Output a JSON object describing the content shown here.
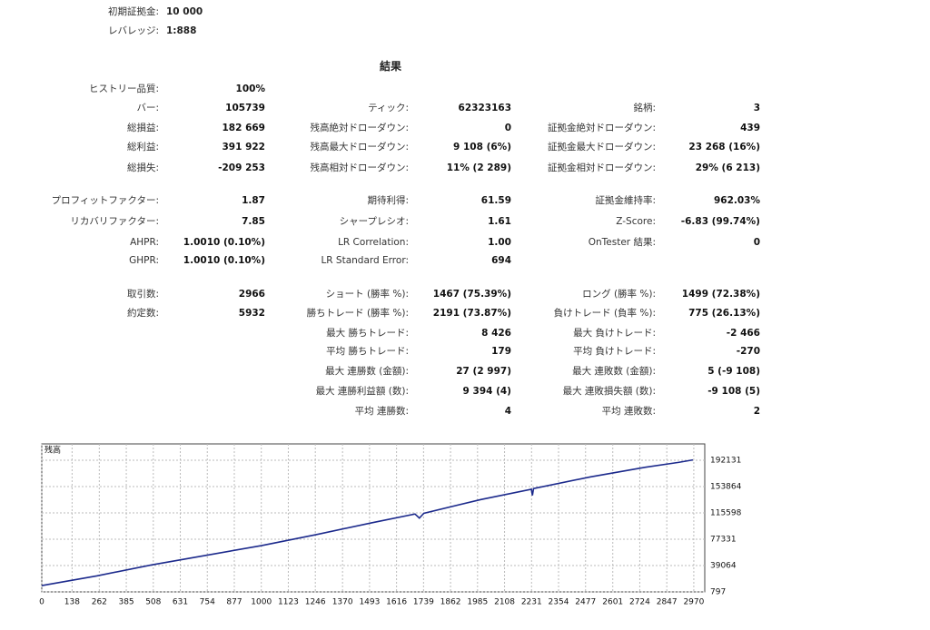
{
  "header": {
    "items": [
      {
        "label": "初期証拠金:",
        "value": "10 000"
      },
      {
        "label": "レバレッジ:",
        "value": "1:888"
      }
    ]
  },
  "title": "結果",
  "rows": [
    {
      "left": {
        "label": "ヒストリー品質:",
        "value": "100%"
      }
    },
    {
      "left": {
        "label": "バー:",
        "value": "105739"
      },
      "middle": {
        "label": "ティック:",
        "value": "62323163"
      },
      "right": {
        "label": "銘柄:",
        "value": "3"
      }
    },
    {
      "left": {
        "label": "総損益:",
        "value": "182 669"
      },
      "middle": {
        "label": "残高絶対ドローダウン:",
        "value": "0"
      },
      "right": {
        "label": "証拠金絶対ドローダウン:",
        "value": "439"
      }
    },
    {
      "left": {
        "label": "総利益:",
        "value": "391 922"
      },
      "middle": {
        "label": "残高最大ドローダウン:",
        "value": "9 108 (6%)"
      },
      "right": {
        "label": "証拠金最大ドローダウン:",
        "value": "23 268 (16%)"
      }
    },
    {
      "left": {
        "label": "総損失:",
        "value": "-209 253"
      },
      "middle": {
        "label": "残高相対ドローダウン:",
        "value": "11% (2 289)"
      },
      "right": {
        "label": "証拠金相対ドローダウン:",
        "value": "29% (6 213)"
      }
    },
    {
      "left": {
        "label": "プロフィットファクター:",
        "value": "1.87"
      },
      "middle": {
        "label": "期待利得:",
        "value": "61.59"
      },
      "right": {
        "label": "証拠金維持率:",
        "value": "962.03%"
      }
    },
    {
      "left": {
        "label": "リカバリファクター:",
        "value": "7.85"
      },
      "middle": {
        "label": "シャープレシオ:",
        "value": "1.61"
      },
      "right": {
        "label": "Z-Score:",
        "value": "-6.83 (99.74%)"
      }
    },
    {
      "left": {
        "label": "AHPR:",
        "value": "1.0010 (0.10%)"
      },
      "middle": {
        "label": "LR Correlation:",
        "value": "1.00"
      },
      "right": {
        "label": "OnTester 結果:",
        "value": "0"
      }
    },
    {
      "left": {
        "label": "GHPR:",
        "value": "1.0010 (0.10%)"
      },
      "middle": {
        "label": "LR Standard Error:",
        "value": "694"
      }
    },
    {
      "left": {
        "label": "取引数:",
        "value": "2966"
      },
      "middle": {
        "label": "ショート (勝率 %):",
        "value": "1467 (75.39%)"
      },
      "right": {
        "label": "ロング (勝率 %):",
        "value": "1499 (72.38%)"
      }
    },
    {
      "left": {
        "label": "約定数:",
        "value": "5932"
      },
      "middle": {
        "label": "勝ちトレード (勝率 %):",
        "value": "2191 (73.87%)"
      },
      "right": {
        "label": "負けトレード (負率 %):",
        "value": "775 (26.13%)"
      }
    },
    {
      "middle": {
        "label": "最大 勝ちトレード:",
        "value": "8 426"
      },
      "right": {
        "label": "最大 負けトレード:",
        "value": "-2 466"
      }
    },
    {
      "middle": {
        "label": "平均 勝ちトレード:",
        "value": "179"
      },
      "right": {
        "label": "平均 負けトレード:",
        "value": "-270"
      }
    },
    {
      "middle": {
        "label": "最大 連勝数 (金額):",
        "value": "27 (2 997)"
      },
      "right": {
        "label": "最大 連敗数 (金額):",
        "value": "5 (-9 108)"
      }
    },
    {
      "middle": {
        "label": "最大 連勝利益額 (数):",
        "value": "9 394 (4)"
      },
      "right": {
        "label": "最大 連敗損失額 (数):",
        "value": "-9 108 (5)"
      }
    },
    {
      "middle": {
        "label": "平均 連勝数:",
        "value": "4"
      },
      "right": {
        "label": "平均 連敗数:",
        "value": "2"
      }
    }
  ],
  "chart_data": {
    "type": "line",
    "title": "残高",
    "color": "#1c2a8c",
    "grid": true,
    "x": [
      0,
      250,
      500,
      750,
      1000,
      1250,
      1500,
      1700,
      1720,
      1740,
      2000,
      2230,
      2235,
      2240,
      2500,
      2750,
      2900,
      2966
    ],
    "values": [
      10000,
      24000,
      40000,
      54000,
      68000,
      84000,
      101000,
      114000,
      108000,
      115000,
      135000,
      150000,
      141000,
      151000,
      168000,
      182000,
      189000,
      192669
    ],
    "xlim": [
      0,
      3020
    ],
    "xticks": [
      0,
      138,
      262,
      385,
      508,
      631,
      754,
      877,
      1000,
      1123,
      1246,
      1370,
      1493,
      1616,
      1739,
      1862,
      1985,
      2108,
      2231,
      2354,
      2477,
      2601,
      2724,
      2847,
      2970
    ],
    "ylim": [
      797,
      215900
    ],
    "yticks": [
      797,
      39064,
      77331,
      115598,
      153864,
      192131
    ]
  }
}
